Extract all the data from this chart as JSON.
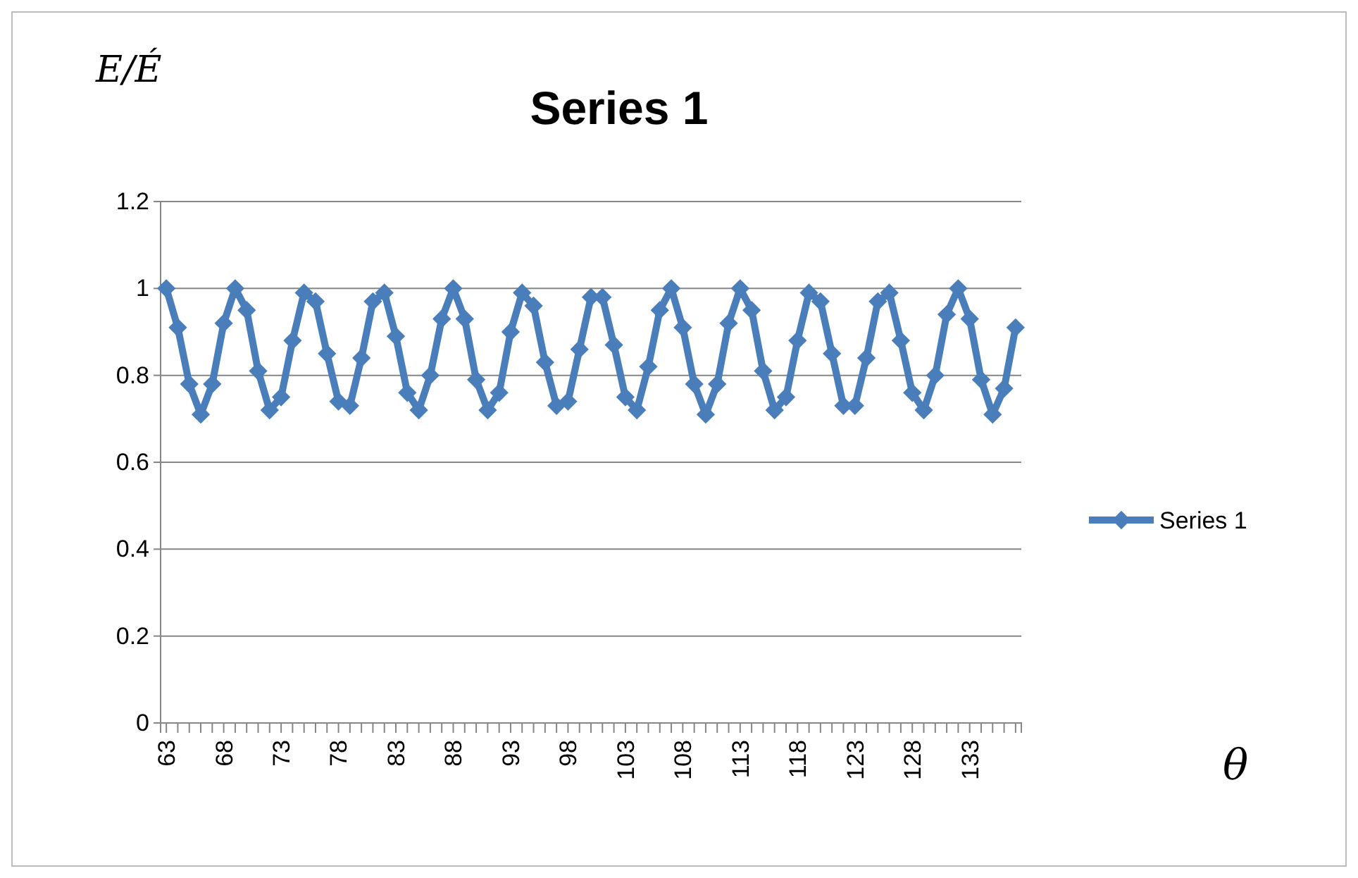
{
  "chart_data": {
    "type": "line",
    "title": "Series 1",
    "ylabel": "E/É",
    "xlabel": "θ",
    "categories": [
      "63",
      null,
      null,
      null,
      null,
      "68",
      null,
      null,
      null,
      null,
      "73",
      null,
      null,
      null,
      null,
      "78",
      null,
      null,
      null,
      null,
      "83",
      null,
      null,
      null,
      null,
      "88",
      null,
      null,
      null,
      null,
      "93",
      null,
      null,
      null,
      null,
      "98",
      null,
      null,
      null,
      null,
      "103",
      null,
      null,
      null,
      null,
      "108",
      null,
      null,
      null,
      null,
      "113",
      null,
      null,
      null,
      null,
      "118",
      null,
      null,
      null,
      null,
      "123",
      null,
      null,
      null,
      null,
      "128",
      null,
      null,
      null,
      null,
      "133",
      null,
      null,
      null,
      null
    ],
    "series": [
      {
        "name": "Series 1",
        "color": "#4a7ebb",
        "values": [
          1.0,
          0.91,
          0.78,
          0.71,
          0.78,
          0.92,
          1.0,
          0.95,
          0.81,
          0.72,
          0.75,
          0.88,
          0.99,
          0.97,
          0.85,
          0.74,
          0.73,
          0.84,
          0.97,
          0.99,
          0.89,
          0.76,
          0.72,
          0.8,
          0.93,
          1.0,
          0.93,
          0.79,
          0.72,
          0.76,
          0.9,
          0.99,
          0.96,
          0.83,
          0.73,
          0.74,
          0.86,
          0.98,
          0.98,
          0.87,
          0.75,
          0.72,
          0.82,
          0.95,
          1.0,
          0.91,
          0.78,
          0.71,
          0.78,
          0.92,
          1.0,
          0.95,
          0.81,
          0.72,
          0.75,
          0.88,
          0.99,
          0.97,
          0.85,
          0.73,
          0.73,
          0.84,
          0.97,
          0.99,
          0.88,
          0.76,
          0.72,
          0.8,
          0.94,
          1.0,
          0.93,
          0.79,
          0.71,
          0.77,
          0.91
        ]
      }
    ],
    "ylim": [
      0,
      1.2
    ],
    "yticks": [
      0,
      0.2,
      0.4,
      0.6,
      0.8,
      1,
      1.2
    ],
    "grid": "y",
    "legend": "right",
    "marker": "diamond",
    "line_style": "solid"
  }
}
